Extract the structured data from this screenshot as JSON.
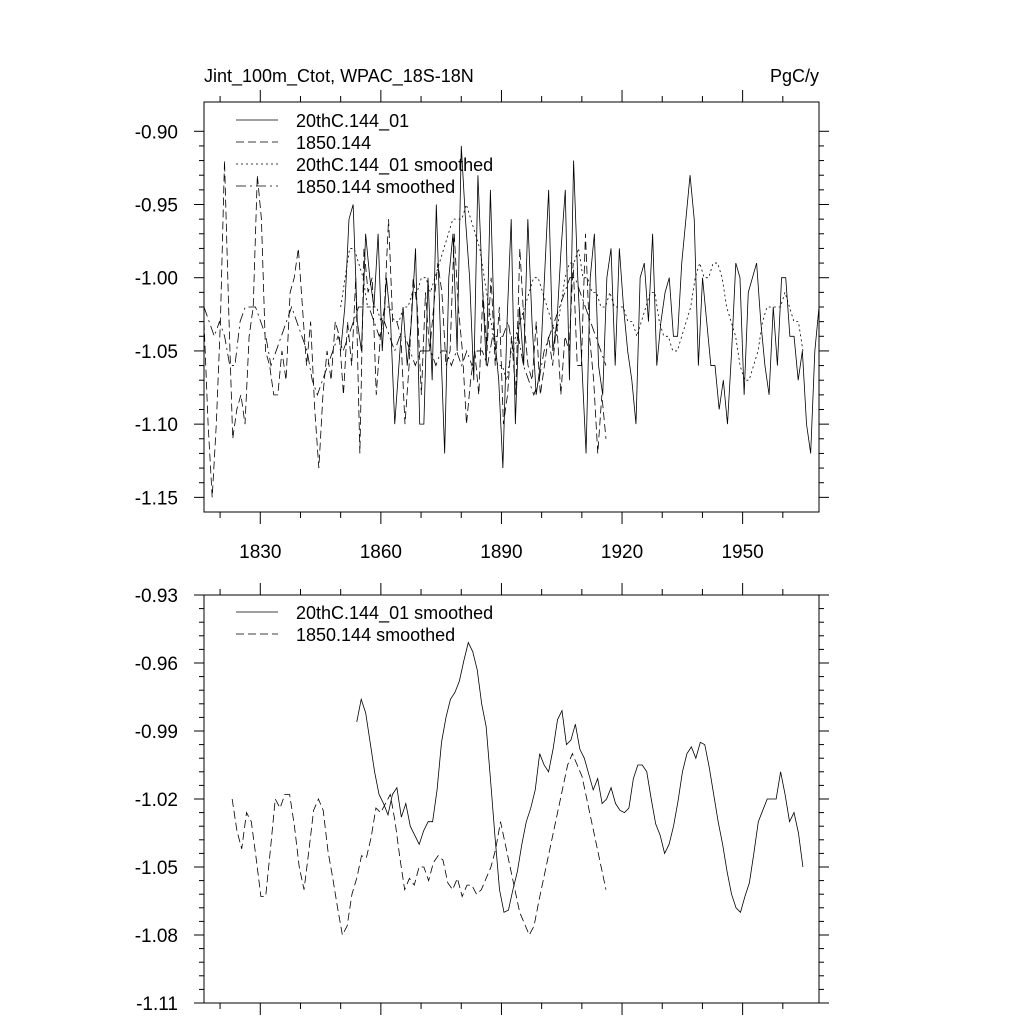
{
  "figure": {
    "title_left": "Jint_100m_Ctot, WPAC_18S-18N",
    "title_right": "PgC/y"
  },
  "chart_data": [
    {
      "type": "line",
      "title": "Jint_100m_Ctot, WPAC_18S-18N",
      "units": "PgC/y",
      "xlim": [
        1816,
        1969
      ],
      "ylim": [
        -1.16,
        -0.88
      ],
      "xticks": [
        1830,
        1860,
        1890,
        1920,
        1950
      ],
      "xtick_labels": [
        "1830",
        "1860",
        "1890",
        "1920",
        "1950"
      ],
      "yticks": [
        -0.9,
        -0.95,
        -1.0,
        -1.05,
        -1.1,
        -1.15
      ],
      "ytick_labels": [
        "-0.90",
        "-0.95",
        "-1.00",
        "-1.05",
        "-1.10",
        "-1.15"
      ],
      "legend": [
        "20thC.144_01",
        "1850.144",
        "20thC.144_01 smoothed",
        "1850.144 smoothed"
      ],
      "series": [
        {
          "name": "20thC.144_01",
          "style": "solid",
          "x_start": 1850,
          "values": [
            -1.05,
            -1.02,
            -0.96,
            -0.95,
            -1.03,
            -1.05,
            -0.97,
            -1.0,
            -1.02,
            -0.97,
            -1.05,
            -1.0,
            -1.03,
            -1.1,
            -1.06,
            -1.02,
            -1.06,
            -1.03,
            -0.98,
            -1.1,
            -1.1,
            -1.0,
            -1.07,
            -0.95,
            -1.04,
            -1.12,
            -1.0,
            -0.97,
            -1.05,
            -0.91,
            -0.96,
            -1.0,
            -1.07,
            -0.93,
            -1.0,
            -1.06,
            -0.94,
            -1.04,
            -1.07,
            -1.13,
            -1.03,
            -0.96,
            -1.1,
            -1.02,
            -1.06,
            -0.96,
            -1.03,
            -1.08,
            -1.06,
            -1.0,
            -0.94,
            -1.05,
            -1.03,
            -0.98,
            -0.94,
            -1.07,
            -0.92,
            -1.0,
            -1.06,
            -1.12,
            -1.0,
            -0.97,
            -1.06,
            -1.08,
            -1.0,
            -0.98,
            -1.06,
            -0.98,
            -1.02,
            -1.05,
            -1.07,
            -1.1,
            -1.0,
            -0.99,
            -1.03,
            -0.97,
            -1.06,
            -1.03,
            -1.01,
            -1.0,
            -1.04,
            -1.04,
            -0.99,
            -0.96,
            -0.93,
            -0.96,
            -1.06,
            -1.0,
            -1.03,
            -1.06,
            -1.06,
            -1.09,
            -1.07,
            -1.1,
            -1.05,
            -0.99,
            -1.0,
            -1.08,
            -1.01,
            -1.0,
            -0.99,
            -1.03,
            -1.06,
            -1.08,
            -1.02,
            -1.06,
            -1.0,
            -1.0,
            -1.04,
            -1.04,
            -1.07,
            -1.05,
            -1.1,
            -1.12,
            -1.05,
            -1.02
          ],
          "x_end": 1969
        },
        {
          "name": "1850.144",
          "style": "dash",
          "x_start": 1816,
          "values": [
            -1.03,
            -1.1,
            -1.15,
            -1.1,
            -1.03,
            -0.92,
            -1.02,
            -1.11,
            -1.09,
            -1.08,
            -1.1,
            -1.04,
            -1.02,
            -0.93,
            -0.96,
            -1.05,
            -1.06,
            -1.08,
            -1.08,
            -1.05,
            -1.07,
            -1.01,
            -1.0,
            -0.98,
            -1.02,
            -1.06,
            -1.03,
            -1.09,
            -1.13,
            -1.08,
            -1.05,
            -1.07,
            -1.03,
            -1.04,
            -1.08,
            -1.03,
            -1.06,
            -1.0,
            -1.12,
            -0.98,
            -1.01,
            -1.0,
            -1.08,
            -1.04,
            -1.02,
            -0.96,
            -1.03,
            -1.03,
            -1.04,
            -1.1,
            -1.06,
            -1.0,
            -1.02,
            -1.08,
            -1.01,
            -1.05,
            -1.02,
            -0.99,
            -1.01,
            -1.06,
            -1.05,
            -0.97,
            -1.02,
            -1.05,
            -1.1,
            -1.07,
            -1.05,
            -1.08,
            -1.01,
            -1.05,
            -1.0,
            -1.06,
            -1.02,
            -1.1,
            -1.08,
            -1.04,
            -1.08,
            -0.98,
            -1.03,
            -1.06,
            -1.07,
            -1.03,
            -1.08,
            -1.06,
            -1.04,
            -1.06,
            -1.03,
            -1.08,
            -1.04,
            -1.05,
            -0.99,
            -1.06,
            -1.06,
            -0.97,
            -1.04,
            -1.07,
            -1.12,
            -1.08,
            -1.11
          ],
          "x_end": 1916
        },
        {
          "name": "20thC.144_01 smoothed",
          "style": "dot",
          "x_start": 1850,
          "values": [
            -1.02,
            -1.0,
            -0.98,
            -0.98,
            -0.99,
            -1.0,
            -1.02,
            -1.02,
            -1.02,
            -1.03,
            -1.02,
            -1.02,
            -1.03,
            -1.03,
            -1.02,
            -1.02,
            -1.01,
            -1.01,
            -1.0,
            -1.0,
            -1.01,
            -1.0,
            -0.99,
            -0.98,
            -0.97,
            -0.96,
            -0.96,
            -0.96,
            -0.95,
            -0.96,
            -0.97,
            -0.98,
            -1.0,
            -1.02,
            -1.04,
            -1.06,
            -1.06,
            -1.07,
            -1.05,
            -1.04,
            -1.03,
            -1.02,
            -1.01,
            -1.0,
            -1.0,
            -1.01,
            -1.02,
            -1.03,
            -1.04,
            -1.02,
            -1.0,
            -0.99,
            -0.99,
            -0.98,
            -1.0,
            -1.0,
            -1.01,
            -1.01,
            -1.02,
            -1.02,
            -1.01,
            -1.02,
            -1.02,
            -1.02,
            -1.03,
            -1.03,
            -1.04,
            -1.03,
            -1.02,
            -1.01,
            -1.01,
            -1.03,
            -1.04,
            -1.04,
            -1.05,
            -1.05,
            -1.04,
            -1.03,
            -1.02,
            -1.0,
            -0.99,
            -1.0,
            -1.0,
            -0.99,
            -0.99,
            -1.0,
            -1.02,
            -1.03,
            -1.04,
            -1.06,
            -1.07,
            -1.07,
            -1.06,
            -1.05,
            -1.03,
            -1.02,
            -1.02,
            -1.02,
            -1.02,
            -1.01,
            -1.02,
            -1.03,
            -1.03,
            -1.05
          ],
          "x_end": 1965
        },
        {
          "name": "1850.144 smoothed",
          "style": "dashdot",
          "x_start": 1816,
          "values": [
            -1.02,
            -1.03,
            -1.04,
            -1.03,
            -1.04,
            -1.06,
            -1.06,
            -1.03,
            -1.02,
            -1.02,
            -1.02,
            -1.03,
            -1.04,
            -1.06,
            -1.05,
            -1.04,
            -1.03,
            -1.02,
            -1.03,
            -1.04,
            -1.05,
            -1.07,
            -1.08,
            -1.07,
            -1.06,
            -1.05,
            -1.04,
            -1.05,
            -1.04,
            -1.03,
            -1.02,
            -1.02,
            -1.02,
            -1.03,
            -1.04,
            -1.03,
            -1.04,
            -1.05,
            -1.04,
            -1.04,
            -1.05,
            -1.06,
            -1.05,
            -1.05,
            -1.05,
            -1.06,
            -1.05,
            -1.05,
            -1.06,
            -1.05,
            -1.06,
            -1.05,
            -1.06,
            -1.05,
            -1.05,
            -1.06,
            -1.04,
            -1.04,
            -1.04,
            -1.03,
            -1.05,
            -1.04,
            -1.06,
            -1.07,
            -1.08,
            -1.07,
            -1.05,
            -1.04,
            -1.03,
            -1.02,
            -1.01,
            -1.0,
            -1.0,
            -1.01,
            -1.02,
            -1.03,
            -1.04,
            -1.05,
            -1.06
          ],
          "x_end": 1916
        }
      ]
    },
    {
      "type": "line",
      "title": "",
      "xlim": [
        1816,
        1969
      ],
      "ylim": [
        -1.11,
        -0.93
      ],
      "xticks": [
        1830,
        1860,
        1890,
        1920,
        1950
      ],
      "xtick_labels": [],
      "yticks": [
        -0.93,
        -0.96,
        -0.99,
        -1.02,
        -1.05,
        -1.08,
        -1.11
      ],
      "ytick_labels": [
        "-0.93",
        "-0.96",
        "-0.99",
        "-1.02",
        "-1.05",
        "-1.08",
        "-1.11"
      ],
      "legend": [
        "20thC.144_01 smoothed",
        "1850.144 smoothed"
      ],
      "series": [
        {
          "name": "20thC.144_01 smoothed",
          "style": "solid",
          "x_start": 1854,
          "values": [
            -0.986,
            -0.976,
            -0.982,
            -0.995,
            -1.008,
            -1.018,
            -1.022,
            -1.027,
            -1.018,
            -1.015,
            -1.028,
            -1.022,
            -1.032,
            -1.036,
            -1.04,
            -1.034,
            -1.03,
            -1.03,
            -1.016,
            -0.995,
            -0.984,
            -0.976,
            -0.973,
            -0.968,
            -0.959,
            -0.951,
            -0.955,
            -0.963,
            -0.978,
            -0.988,
            -1.012,
            -1.037,
            -1.06,
            -1.07,
            -1.069,
            -1.06,
            -1.052,
            -1.04,
            -1.03,
            -1.024,
            -1.016,
            -1.0,
            -1.005,
            -1.008,
            -0.998,
            -0.985,
            -0.981,
            -0.996,
            -0.994,
            -0.987,
            -0.998,
            -1.002,
            -1.009,
            -1.016,
            -1.011,
            -1.022,
            -1.02,
            -1.015,
            -1.022,
            -1.025,
            -1.026,
            -1.024,
            -1.011,
            -1.005,
            -1.005,
            -1.008,
            -1.02,
            -1.031,
            -1.036,
            -1.044,
            -1.04,
            -1.032,
            -1.021,
            -1.008,
            -1.0,
            -0.997,
            -1.002,
            -0.995,
            -0.996,
            -1.006,
            -1.018,
            -1.03,
            -1.04,
            -1.052,
            -1.062,
            -1.068,
            -1.07,
            -1.063,
            -1.057,
            -1.044,
            -1.03,
            -1.025,
            -1.02,
            -1.02,
            -1.02,
            -1.008,
            -1.018,
            -1.03,
            -1.026,
            -1.035,
            -1.05
          ],
          "x_end": 1965
        },
        {
          "name": "1850.144 smoothed",
          "style": "dash",
          "x_start": 1823,
          "values": [
            -1.02,
            -1.034,
            -1.042,
            -1.026,
            -1.03,
            -1.046,
            -1.063,
            -1.063,
            -1.042,
            -1.02,
            -1.024,
            -1.018,
            -1.018,
            -1.032,
            -1.05,
            -1.06,
            -1.043,
            -1.025,
            -1.02,
            -1.025,
            -1.043,
            -1.055,
            -1.068,
            -1.08,
            -1.076,
            -1.062,
            -1.055,
            -1.045,
            -1.046,
            -1.037,
            -1.024,
            -1.026,
            -1.022,
            -1.018,
            -1.03,
            -1.046,
            -1.06,
            -1.055,
            -1.058,
            -1.05,
            -1.05,
            -1.056,
            -1.048,
            -1.045,
            -1.047,
            -1.057,
            -1.06,
            -1.055,
            -1.063,
            -1.058,
            -1.058,
            -1.062,
            -1.06,
            -1.055,
            -1.05,
            -1.042,
            -1.03,
            -1.04,
            -1.05,
            -1.06,
            -1.07,
            -1.075,
            -1.08,
            -1.076,
            -1.065,
            -1.055,
            -1.045,
            -1.035,
            -1.025,
            -1.015,
            -1.005,
            -1.0,
            -1.005,
            -1.01,
            -1.02,
            -1.03,
            -1.04,
            -1.05,
            -1.06
          ],
          "x_end": 1916
        }
      ]
    }
  ]
}
